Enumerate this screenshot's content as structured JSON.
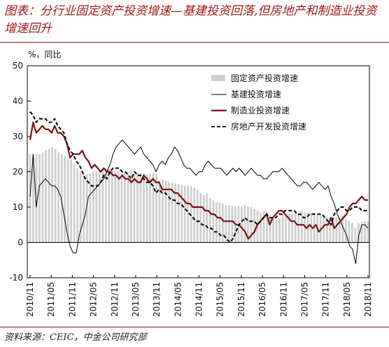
{
  "header": {
    "title": "图表：分行业固定资产投资增速—基建投资回落,但房地产和制造业投资增速回升"
  },
  "footer": {
    "source": "资料来源：CEIC，中金公司研究部"
  },
  "colors": {
    "title": "#a01818",
    "bars": "#cfcfcf",
    "infrastructure": "#000000",
    "manufacturing": "#7a1216",
    "real_estate": "#000000"
  },
  "chart_data": {
    "type": "line",
    "unit_label": "%，同比",
    "ylim": [
      -10,
      50
    ],
    "yticks": [
      -10,
      0,
      10,
      20,
      30,
      40,
      50
    ],
    "x_start": "2010-11",
    "x_end": "2018-11",
    "xticks": [
      "2010/11",
      "2011/05",
      "2011/11",
      "2012/05",
      "2012/11",
      "2013/05",
      "2013/11",
      "2014/05",
      "2014/11",
      "2015/05",
      "2015/11",
      "2016/05",
      "2016/11",
      "2017/05",
      "2017/11",
      "2018/05",
      "2018/11"
    ],
    "legend_position": "top-right",
    "series": [
      {
        "name": "固定资产投资增速",
        "kind": "bar",
        "values": [
          25,
          24.5,
          25,
          25,
          25.5,
          26,
          26.5,
          27,
          26.5,
          25.5,
          25,
          24.5,
          24,
          23.5,
          22,
          21,
          20,
          19.5,
          19.2,
          19.5,
          20,
          20.2,
          20.5,
          20.6,
          20.7,
          20.6,
          20.5,
          20.3,
          20.2,
          20.1,
          20,
          20.2,
          20.3,
          20,
          19.8,
          19.6,
          19.5,
          19.3,
          19.4,
          19.6,
          19.3,
          17.5,
          17.8,
          17.4,
          17.2,
          17,
          16.8,
          16.5,
          16.2,
          16,
          16.1,
          15.9,
          15.5,
          15,
          14,
          13.5,
          13.8,
          12.5,
          12,
          11.5,
          11.3,
          11,
          10.5,
          10.5,
          10.3,
          10.2,
          10.3,
          10.2,
          10.5,
          10.2,
          10,
          9.5,
          9,
          8.5,
          9,
          8.8,
          7.5,
          6.8,
          6.5,
          7,
          8,
          8.2,
          8.3,
          8.1,
          8.2,
          8.1,
          9,
          8.7,
          8.5,
          8.3,
          8.2,
          7.9,
          7.8,
          7.5,
          7.3,
          7.2,
          7.0,
          6.8,
          7.3,
          7.5,
          6.5,
          6,
          5.5,
          4.2,
          5.5,
          5.8,
          6.0,
          6.0
        ]
      },
      {
        "name": "基建投资增速",
        "kind": "line",
        "values": [
          13,
          25,
          10,
          16,
          17,
          18,
          17,
          16,
          16,
          15,
          13,
          8,
          3,
          -1,
          -3,
          -3,
          2,
          5,
          8,
          13,
          14,
          15,
          16,
          17,
          18,
          20,
          22,
          25,
          27,
          28,
          29,
          28,
          27,
          26,
          25,
          26,
          27,
          25,
          24,
          23,
          22,
          20,
          22,
          23,
          22,
          24,
          25,
          27,
          26,
          24,
          22,
          21,
          21,
          20,
          19,
          20,
          20,
          22,
          23,
          22,
          21,
          21,
          21,
          20,
          19,
          20,
          21,
          20,
          21,
          20,
          19,
          20,
          21,
          20,
          19,
          19,
          18,
          18,
          19,
          20,
          20,
          20,
          21,
          20,
          19,
          18,
          17,
          16,
          16,
          17,
          17,
          16,
          15,
          16,
          17,
          16,
          15,
          16,
          13,
          11,
          8,
          6,
          4,
          2,
          -1,
          -2,
          -6,
          2,
          5,
          5,
          4
        ]
      },
      {
        "name": "制造业投资增速",
        "kind": "line",
        "values": [
          29,
          34,
          31,
          32,
          33,
          32,
          32,
          31,
          33,
          31,
          31,
          30,
          28,
          24,
          25,
          25,
          25,
          26,
          24,
          23,
          21,
          22,
          21,
          20,
          21,
          20,
          20,
          19,
          19,
          18,
          19,
          18,
          18,
          17,
          18,
          17,
          17,
          19,
          18,
          17,
          18,
          17,
          17,
          15,
          15,
          15,
          15,
          14,
          14,
          13,
          12,
          11,
          11,
          10,
          10,
          10,
          10,
          9,
          9,
          8,
          8,
          7,
          7,
          6,
          6,
          6,
          6,
          5,
          5,
          4,
          3,
          1,
          2,
          3,
          5,
          6,
          7,
          8,
          5,
          7,
          8,
          9,
          9,
          8,
          7,
          6,
          6,
          5,
          5,
          5,
          4,
          5,
          4,
          5,
          3,
          4,
          5,
          5,
          7,
          4,
          5,
          6,
          7,
          8,
          10,
          11,
          11,
          12,
          13,
          12,
          12
        ]
      },
      {
        "name": "房地产开发投资增速",
        "kind": "line",
        "values": [
          37,
          36,
          34,
          35,
          35,
          35,
          34,
          34,
          35,
          33,
          32,
          31,
          28,
          26,
          25,
          23,
          22,
          20,
          18,
          17,
          16,
          16,
          16,
          17,
          19,
          18,
          20,
          21,
          21,
          21,
          20,
          20,
          19,
          18,
          20,
          19,
          19,
          18,
          17,
          17,
          16,
          14,
          15,
          14,
          14,
          13,
          12,
          12,
          11,
          11,
          10,
          9,
          8,
          7,
          6,
          6,
          5,
          5,
          4,
          4,
          3,
          3,
          2,
          2,
          1,
          0,
          1,
          3,
          5,
          6,
          7,
          6,
          6,
          6,
          5,
          6,
          7,
          8,
          7,
          7,
          7,
          8,
          8,
          9,
          9,
          9,
          9,
          8,
          8,
          7,
          7,
          8,
          8,
          8,
          8,
          8,
          7,
          6,
          5,
          8,
          9,
          10,
          10,
          9,
          9,
          10,
          10,
          10,
          9,
          9,
          9
        ]
      }
    ]
  }
}
